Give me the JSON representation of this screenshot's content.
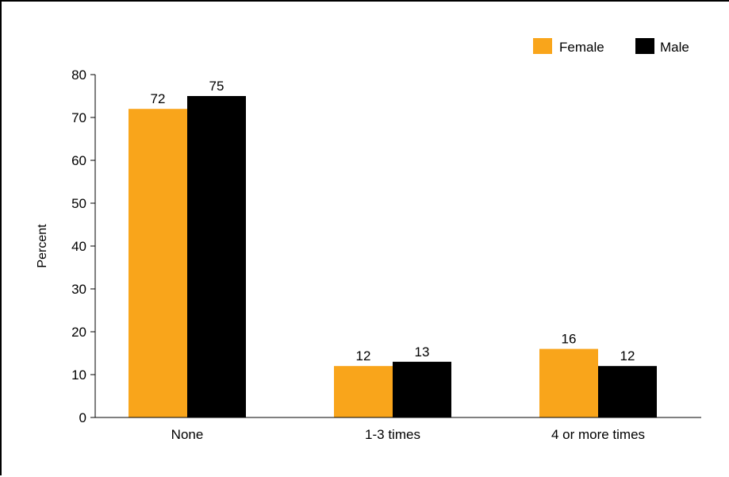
{
  "chart_data": {
    "type": "bar",
    "categories": [
      "None",
      "1-3 times",
      "4 or more times"
    ],
    "series": [
      {
        "name": "Female",
        "values": [
          72,
          12,
          16
        ],
        "color": "#F9A51B"
      },
      {
        "name": "Male",
        "values": [
          75,
          13,
          12
        ],
        "color": "#000000"
      }
    ],
    "ylabel": "Percent",
    "xlabel": "",
    "ylim": [
      0,
      80
    ],
    "yticks": [
      0,
      10,
      20,
      30,
      40,
      50,
      60,
      70,
      80
    ],
    "grid": false,
    "legend": "top-right",
    "data_labels": true
  }
}
